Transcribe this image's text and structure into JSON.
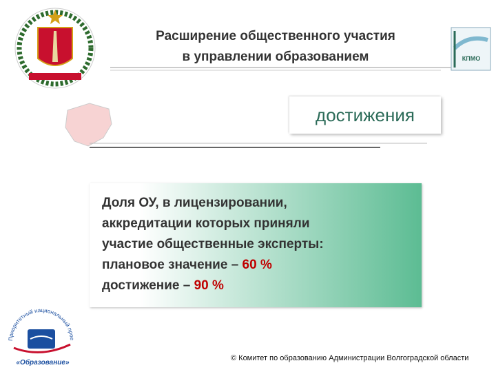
{
  "header": {
    "title_lines": [
      "Расширение общественного участия",
      "в управлении образованием"
    ],
    "logo_right": "КПМО"
  },
  "section_label": "достижения",
  "content": {
    "lines": [
      {
        "text": "Доля ОУ, в лицензировании,"
      },
      {
        "text": "аккредитации которых приняли"
      },
      {
        "text": "участие общественные эксперты:"
      },
      {
        "text": "плановое значение – ",
        "highlight": "60 %"
      },
      {
        "text": "достижение – ",
        "highlight": "90 %"
      }
    ]
  },
  "logo_bottom": {
    "name": "«Образование»",
    "arc": "Приоритетный национальный проект"
  },
  "footer": "© Комитет по образованию Администрации Волгоградской области"
}
